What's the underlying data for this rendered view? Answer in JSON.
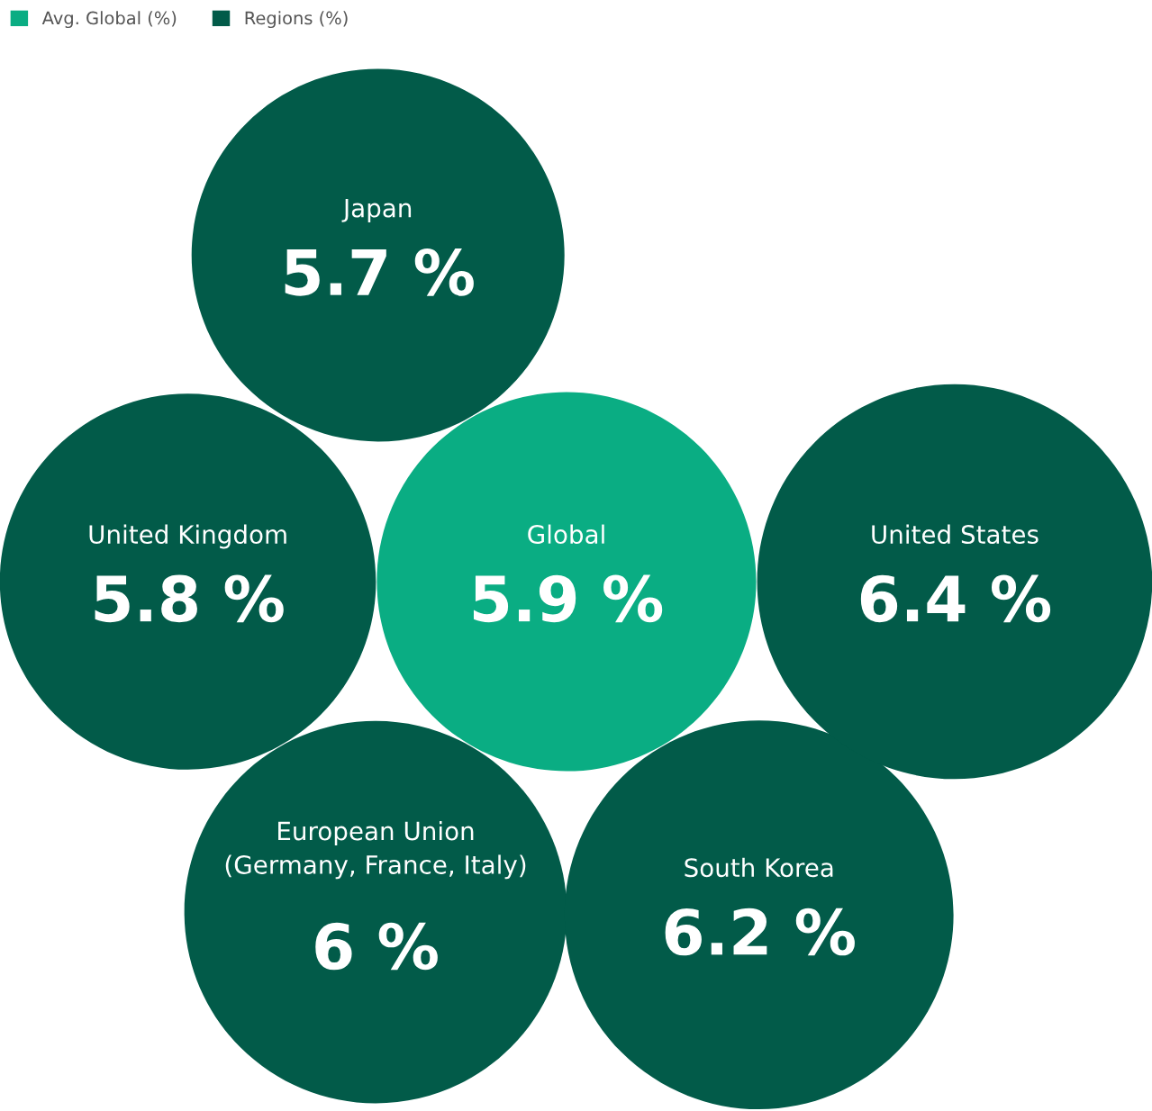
{
  "chart_data": {
    "type": "other",
    "categories": [
      "Japan",
      "United Kingdom",
      "Global",
      "European Union\n(Germany, France, Italy)",
      "South Korea",
      "United States"
    ],
    "series": [
      {
        "name": "Avg. Global (%)",
        "color": "#0aad83",
        "values": [
          null,
          null,
          5.9,
          null,
          null,
          null
        ],
        "value_labels": [
          null,
          null,
          "5.9 %",
          null,
          null,
          null
        ]
      },
      {
        "name": "Regions (%)",
        "color": "#025b49",
        "values": [
          5.7,
          5.8,
          null,
          6,
          6.2,
          6.4
        ],
        "value_labels": [
          "5.7 %",
          "5.8 %",
          null,
          "6 %",
          "6.2 %",
          "6.4 %"
        ]
      }
    ],
    "legend": "top left"
  }
}
